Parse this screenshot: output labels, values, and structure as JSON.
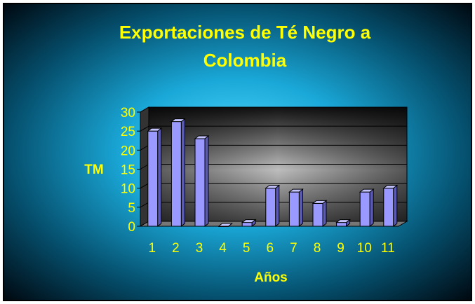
{
  "chart_data": {
    "type": "bar",
    "title_lines": [
      "Exportaciones de Té Negro a",
      "Colombia"
    ],
    "xlabel": "Años",
    "ylabel": "TM",
    "categories": [
      "1",
      "2",
      "3",
      "4",
      "5",
      "6",
      "7",
      "8",
      "9",
      "10",
      "11"
    ],
    "values": [
      25,
      27.5,
      23,
      0,
      1,
      10,
      9,
      6,
      1,
      9,
      10
    ],
    "y_ticks": [
      "0",
      "5",
      "10",
      "15",
      "20",
      "25",
      "30"
    ],
    "ylim": [
      0,
      30
    ],
    "grid": true,
    "legend": "none",
    "colors": {
      "bar_front": "#9999ff",
      "bar_side": "#5a5ab4",
      "bar_top": "#c4c4ff",
      "text": "#ffff00",
      "background_outer": "#001018",
      "background_center": "#33ccff"
    }
  }
}
